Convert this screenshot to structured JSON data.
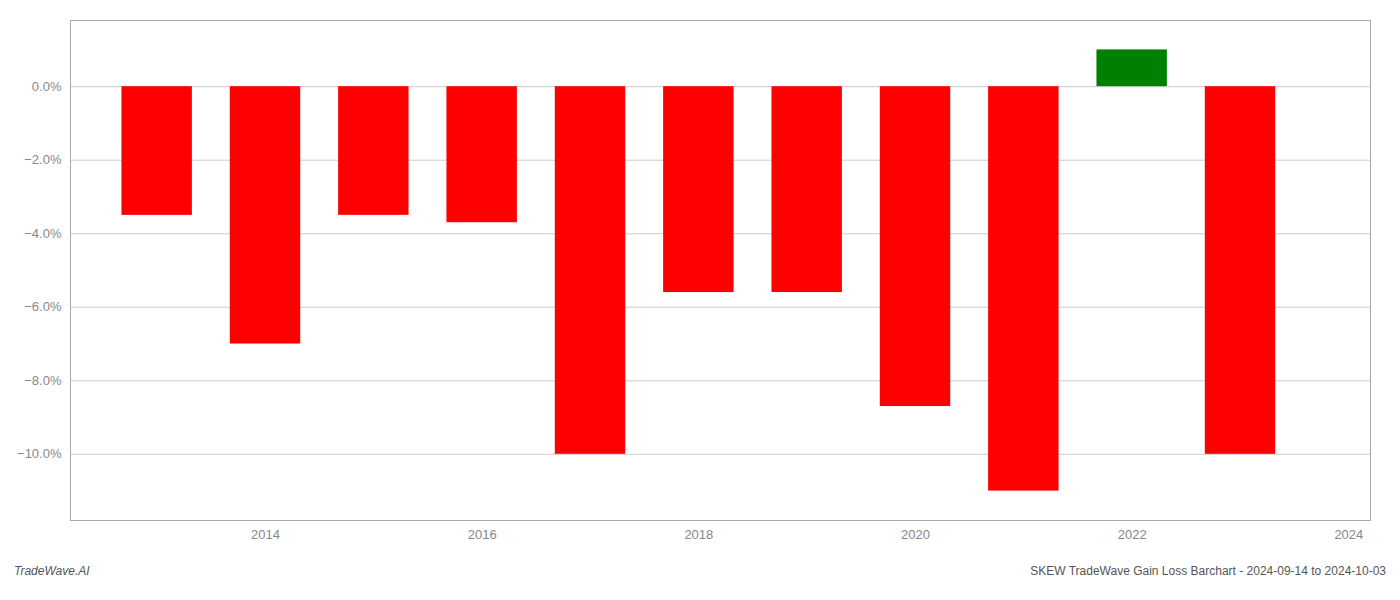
{
  "chart_data": {
    "type": "bar",
    "x": [
      2013,
      2014,
      2015,
      2016,
      2017,
      2018,
      2019,
      2020,
      2021,
      2022,
      2023
    ],
    "values": [
      -3.5,
      -7.0,
      -3.5,
      -3.7,
      -10.0,
      -5.6,
      -5.6,
      -8.7,
      -11.0,
      1.0,
      -10.0
    ],
    "colors": [
      "#ff0000",
      "#ff0000",
      "#ff0000",
      "#ff0000",
      "#ff0000",
      "#ff0000",
      "#ff0000",
      "#ff0000",
      "#ff0000",
      "#008000",
      "#ff0000"
    ],
    "xlim": [
      2012.2,
      2024.2
    ],
    "xticks": [
      2014,
      2016,
      2018,
      2020,
      2022,
      2024
    ],
    "ylim": [
      -11.8,
      1.8
    ],
    "yticks": [
      {
        "value": 0.0,
        "label": "0.0%"
      },
      {
        "value": -2.0,
        "label": "−2.0%"
      },
      {
        "value": -4.0,
        "label": "−4.0%"
      },
      {
        "value": -6.0,
        "label": "−6.0%"
      },
      {
        "value": -8.0,
        "label": "−8.0%"
      },
      {
        "value": -10.0,
        "label": "−10.0%"
      }
    ],
    "grid": true,
    "annotations": [
      "TradeWave.AI",
      "SKEW TradeWave Gain Loss Barchart - 2024-09-14 to 2024-10-03"
    ]
  }
}
